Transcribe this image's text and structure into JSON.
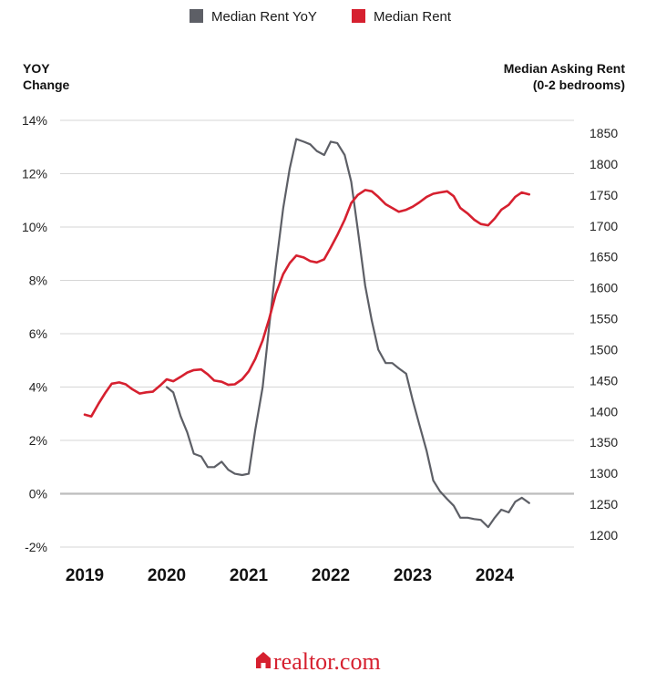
{
  "chart_data": {
    "type": "line",
    "legend": [
      {
        "name": "Median Rent YoY",
        "color": "#5d5f66"
      },
      {
        "name": "Median Rent",
        "color": "#d6202f"
      }
    ],
    "legend_position": "top-center",
    "left_axis": {
      "title_line1": "YOY",
      "title_line2": "Change",
      "min": -2,
      "max": 14,
      "step": 2,
      "tick_labels": [
        "-2%",
        "0%",
        "2%",
        "4%",
        "6%",
        "8%",
        "10%",
        "12%",
        "14%"
      ]
    },
    "right_axis": {
      "title_line1": "Median Asking Rent",
      "title_line2": "(0-2 bedrooms)",
      "min": 1200,
      "max": 1850,
      "step": 50,
      "tick_labels": [
        "1200",
        "1250",
        "1300",
        "1350",
        "1400",
        "1450",
        "1500",
        "1550",
        "1600",
        "1650",
        "1700",
        "1750",
        "1800",
        "1850"
      ]
    },
    "x_axis": {
      "min": 2019,
      "max": 2025,
      "tick_values": [
        2019,
        2020,
        2021,
        2022,
        2023,
        2024
      ],
      "tick_labels": [
        "2019",
        "2020",
        "2021",
        "2022",
        "2023",
        "2024"
      ]
    },
    "grid": true,
    "series": [
      {
        "name": "Median Rent YoY",
        "axis": "left",
        "color": "#5d5f66",
        "points": [
          [
            2020.0,
            4.0
          ],
          [
            2020.08,
            3.8
          ],
          [
            2020.17,
            2.9
          ],
          [
            2020.25,
            2.3
          ],
          [
            2020.33,
            1.5
          ],
          [
            2020.42,
            1.4
          ],
          [
            2020.5,
            1.0
          ],
          [
            2020.58,
            1.0
          ],
          [
            2020.67,
            1.2
          ],
          [
            2020.75,
            0.9
          ],
          [
            2020.83,
            0.75
          ],
          [
            2020.92,
            0.7
          ],
          [
            2021.0,
            0.75
          ],
          [
            2021.08,
            2.4
          ],
          [
            2021.17,
            4.0
          ],
          [
            2021.25,
            6.3
          ],
          [
            2021.33,
            8.5
          ],
          [
            2021.42,
            10.7
          ],
          [
            2021.5,
            12.2
          ],
          [
            2021.58,
            13.3
          ],
          [
            2021.67,
            13.2
          ],
          [
            2021.75,
            13.1
          ],
          [
            2021.83,
            12.85
          ],
          [
            2021.92,
            12.7
          ],
          [
            2022.0,
            13.2
          ],
          [
            2022.08,
            13.15
          ],
          [
            2022.17,
            12.7
          ],
          [
            2022.25,
            11.7
          ],
          [
            2022.33,
            9.9
          ],
          [
            2022.42,
            7.8
          ],
          [
            2022.5,
            6.5
          ],
          [
            2022.58,
            5.4
          ],
          [
            2022.67,
            4.9
          ],
          [
            2022.75,
            4.9
          ],
          [
            2022.83,
            4.7
          ],
          [
            2022.92,
            4.5
          ],
          [
            2023.0,
            3.5
          ],
          [
            2023.08,
            2.6
          ],
          [
            2023.17,
            1.6
          ],
          [
            2023.25,
            0.5
          ],
          [
            2023.33,
            0.1
          ],
          [
            2023.42,
            -0.2
          ],
          [
            2023.5,
            -0.45
          ],
          [
            2023.58,
            -0.9
          ],
          [
            2023.67,
            -0.9
          ],
          [
            2023.75,
            -0.95
          ],
          [
            2023.83,
            -0.98
          ],
          [
            2023.92,
            -1.25
          ],
          [
            2024.0,
            -0.9
          ],
          [
            2024.08,
            -0.6
          ],
          [
            2024.17,
            -0.7
          ],
          [
            2024.25,
            -0.3
          ],
          [
            2024.33,
            -0.15
          ],
          [
            2024.42,
            -0.35
          ]
        ]
      },
      {
        "name": "Median Rent",
        "axis": "right",
        "color": "#d6202f",
        "points": [
          [
            2019.0,
            1395
          ],
          [
            2019.08,
            1392
          ],
          [
            2019.17,
            1413
          ],
          [
            2019.25,
            1430
          ],
          [
            2019.33,
            1445
          ],
          [
            2019.42,
            1447
          ],
          [
            2019.5,
            1444
          ],
          [
            2019.58,
            1436
          ],
          [
            2019.67,
            1429
          ],
          [
            2019.75,
            1431
          ],
          [
            2019.83,
            1432
          ],
          [
            2019.92,
            1442
          ],
          [
            2020.0,
            1452
          ],
          [
            2020.08,
            1449
          ],
          [
            2020.17,
            1456
          ],
          [
            2020.25,
            1463
          ],
          [
            2020.33,
            1467
          ],
          [
            2020.42,
            1468
          ],
          [
            2020.5,
            1460
          ],
          [
            2020.58,
            1450
          ],
          [
            2020.67,
            1448
          ],
          [
            2020.75,
            1443
          ],
          [
            2020.83,
            1444
          ],
          [
            2020.92,
            1452
          ],
          [
            2021.0,
            1465
          ],
          [
            2021.08,
            1485
          ],
          [
            2021.17,
            1515
          ],
          [
            2021.25,
            1550
          ],
          [
            2021.33,
            1590
          ],
          [
            2021.42,
            1622
          ],
          [
            2021.5,
            1640
          ],
          [
            2021.58,
            1652
          ],
          [
            2021.67,
            1649
          ],
          [
            2021.75,
            1643
          ],
          [
            2021.83,
            1641
          ],
          [
            2021.92,
            1646
          ],
          [
            2022.0,
            1665
          ],
          [
            2022.08,
            1685
          ],
          [
            2022.17,
            1710
          ],
          [
            2022.25,
            1737
          ],
          [
            2022.33,
            1750
          ],
          [
            2022.42,
            1758
          ],
          [
            2022.5,
            1756
          ],
          [
            2022.58,
            1747
          ],
          [
            2022.67,
            1735
          ],
          [
            2022.75,
            1729
          ],
          [
            2022.83,
            1723
          ],
          [
            2022.92,
            1726
          ],
          [
            2023.0,
            1731
          ],
          [
            2023.08,
            1738
          ],
          [
            2023.17,
            1747
          ],
          [
            2023.25,
            1752
          ],
          [
            2023.33,
            1754
          ],
          [
            2023.42,
            1756
          ],
          [
            2023.5,
            1748
          ],
          [
            2023.58,
            1729
          ],
          [
            2023.67,
            1720
          ],
          [
            2023.75,
            1710
          ],
          [
            2023.83,
            1703
          ],
          [
            2023.92,
            1701
          ],
          [
            2024.0,
            1712
          ],
          [
            2024.08,
            1726
          ],
          [
            2024.17,
            1734
          ],
          [
            2024.25,
            1747
          ],
          [
            2024.33,
            1754
          ],
          [
            2024.42,
            1751
          ]
        ]
      }
    ]
  },
  "brand": {
    "text": "realtor.com",
    "icon": "house-icon",
    "color": "#d6202f"
  }
}
